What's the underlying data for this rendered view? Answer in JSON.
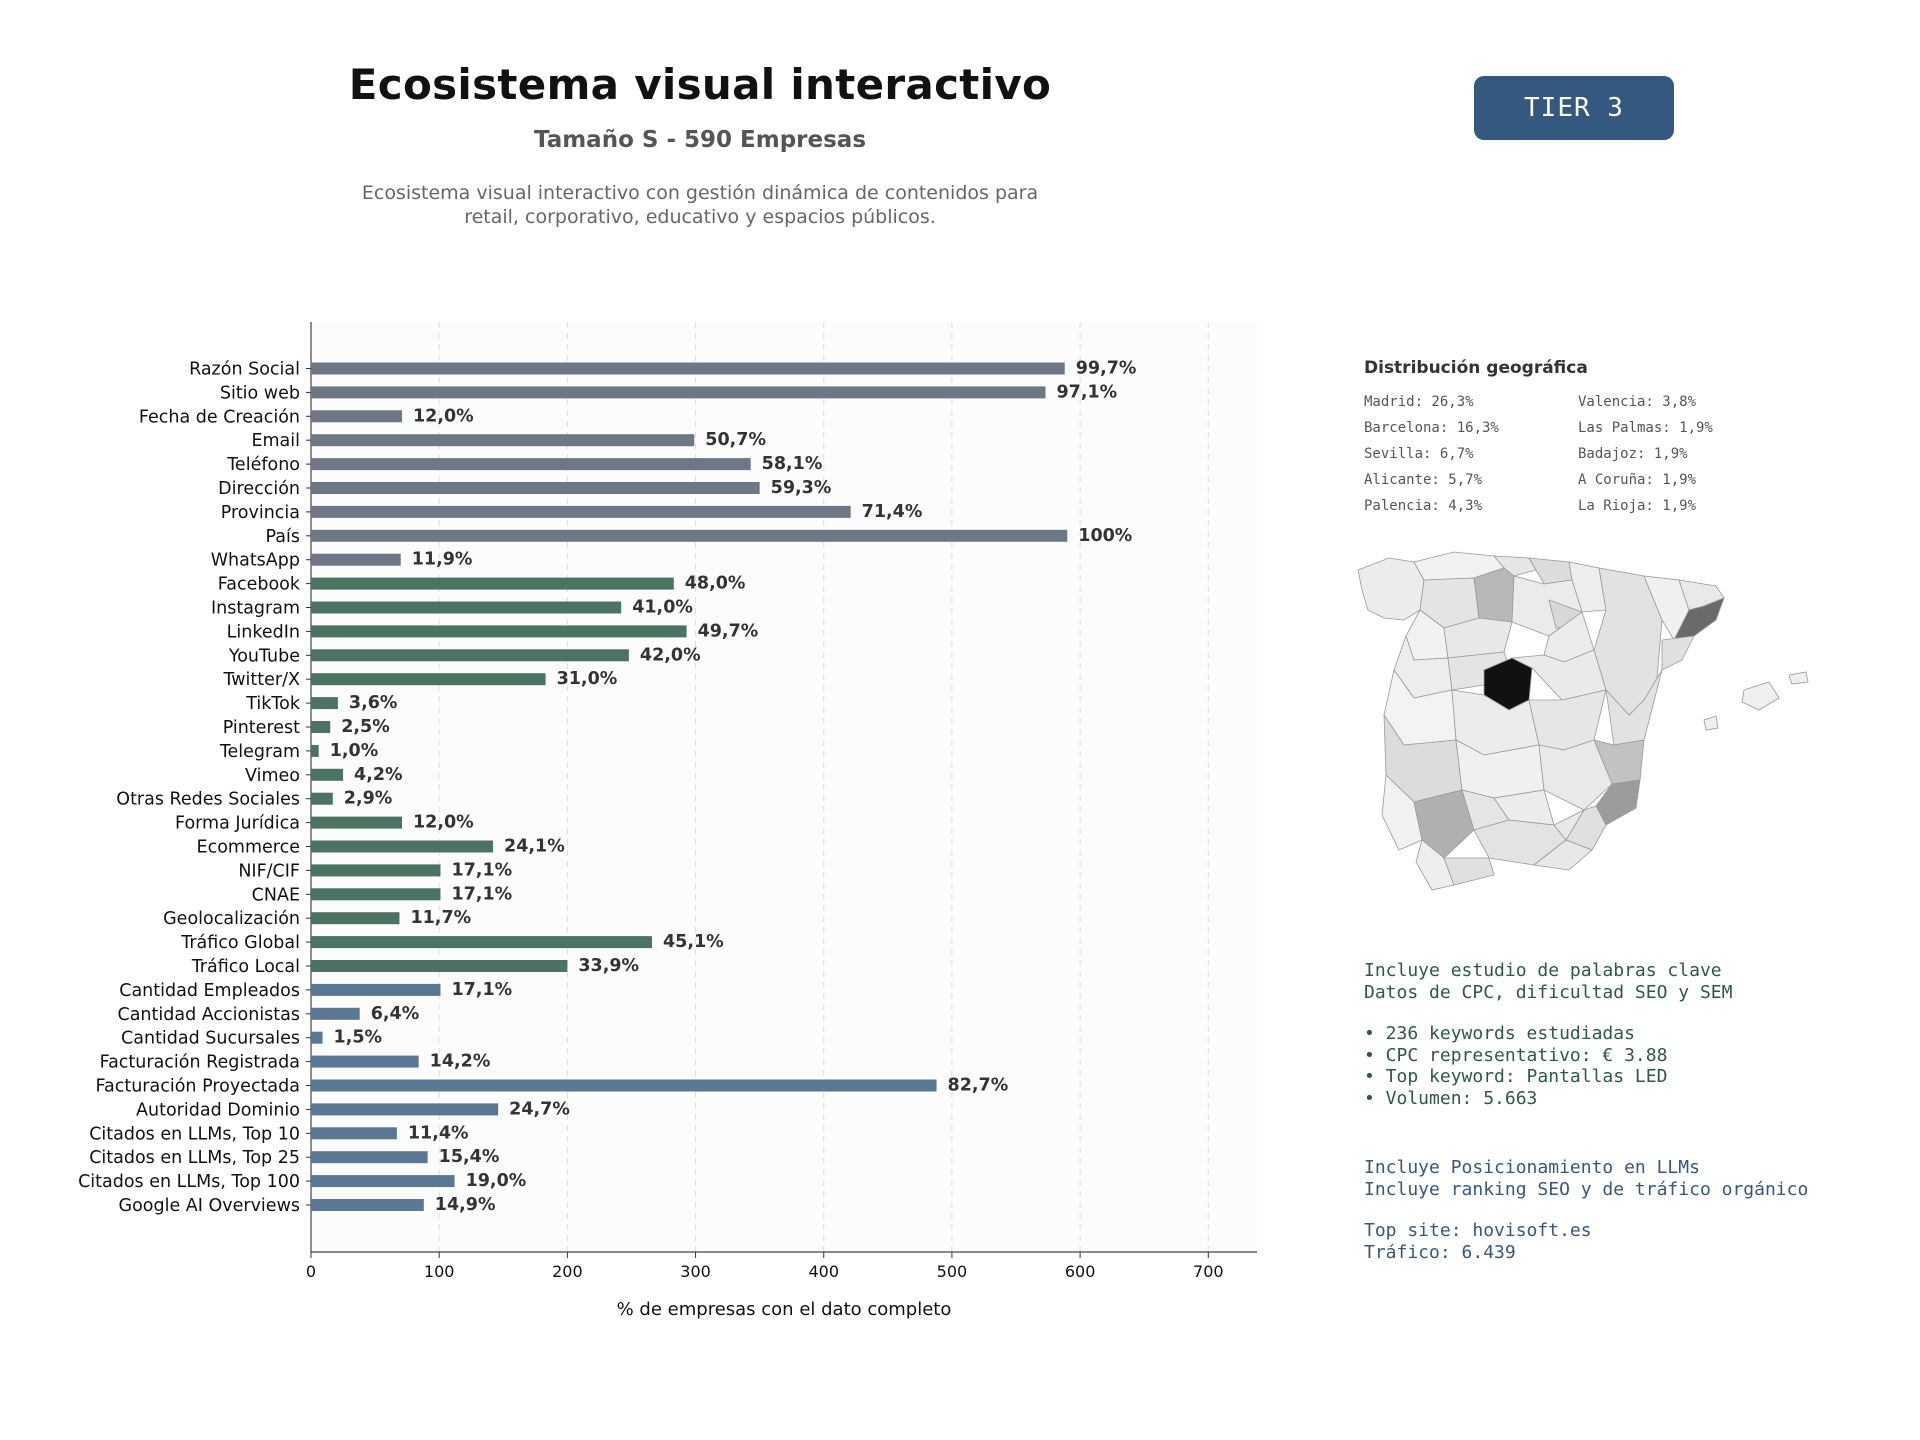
{
  "header": {
    "title": "Ecosistema visual interactivo",
    "subtitle": "Tamaño S - 590 Empresas",
    "description_line1": "Ecosistema visual interactivo con gestión dinámica de contenidos para",
    "description_line2": "retail, corporativo, educativo y espacios públicos."
  },
  "badge": {
    "label": "TIER 3",
    "color": "#34587e"
  },
  "chart_data": {
    "type": "bar",
    "orientation": "horizontal",
    "xlabel": "% de empresas con el dato completo",
    "xlim": [
      0,
      738
    ],
    "xticks": [
      0,
      100,
      200,
      300,
      400,
      500,
      600,
      700
    ],
    "grid": "vertical dashed",
    "total": 590,
    "group_colors": {
      "basic": "#6c7885",
      "social": "#4a7461",
      "business": "#5a7894"
    },
    "bars": [
      {
        "label": "Razón Social",
        "value": 588,
        "pct": "99,7%",
        "group": "basic"
      },
      {
        "label": "Sitio web",
        "value": 573,
        "pct": "97,1%",
        "group": "basic"
      },
      {
        "label": "Fecha de Creación",
        "value": 71,
        "pct": "12,0%",
        "group": "basic"
      },
      {
        "label": "Email",
        "value": 299,
        "pct": "50,7%",
        "group": "basic"
      },
      {
        "label": "Teléfono",
        "value": 343,
        "pct": "58,1%",
        "group": "basic"
      },
      {
        "label": "Dirección",
        "value": 350,
        "pct": "59,3%",
        "group": "basic"
      },
      {
        "label": "Provincia",
        "value": 421,
        "pct": "71,4%",
        "group": "basic"
      },
      {
        "label": "País",
        "value": 590,
        "pct": "100%",
        "group": "basic"
      },
      {
        "label": "WhatsApp",
        "value": 70,
        "pct": "11,9%",
        "group": "basic"
      },
      {
        "label": "Facebook",
        "value": 283,
        "pct": "48,0%",
        "group": "social"
      },
      {
        "label": "Instagram",
        "value": 242,
        "pct": "41,0%",
        "group": "social"
      },
      {
        "label": "LinkedIn",
        "value": 293,
        "pct": "49,7%",
        "group": "social"
      },
      {
        "label": "YouTube",
        "value": 248,
        "pct": "42,0%",
        "group": "social"
      },
      {
        "label": "Twitter/X",
        "value": 183,
        "pct": "31,0%",
        "group": "social"
      },
      {
        "label": "TikTok",
        "value": 21,
        "pct": "3,6%",
        "group": "social"
      },
      {
        "label": "Pinterest",
        "value": 15,
        "pct": "2,5%",
        "group": "social"
      },
      {
        "label": "Telegram",
        "value": 6,
        "pct": "1,0%",
        "group": "social"
      },
      {
        "label": "Vimeo",
        "value": 25,
        "pct": "4,2%",
        "group": "social"
      },
      {
        "label": "Otras Redes Sociales",
        "value": 17,
        "pct": "2,9%",
        "group": "social"
      },
      {
        "label": "Forma Jurídica",
        "value": 71,
        "pct": "12,0%",
        "group": "social"
      },
      {
        "label": "Ecommerce",
        "value": 142,
        "pct": "24,1%",
        "group": "social"
      },
      {
        "label": "NIF/CIF",
        "value": 101,
        "pct": "17,1%",
        "group": "social"
      },
      {
        "label": "CNAE",
        "value": 101,
        "pct": "17,1%",
        "group": "social"
      },
      {
        "label": "Geolocalización",
        "value": 69,
        "pct": "11,7%",
        "group": "social"
      },
      {
        "label": "Tráfico Global",
        "value": 266,
        "pct": "45,1%",
        "group": "social"
      },
      {
        "label": "Tráfico Local",
        "value": 200,
        "pct": "33,9%",
        "group": "social"
      },
      {
        "label": "Cantidad Empleados",
        "value": 101,
        "pct": "17,1%",
        "group": "business"
      },
      {
        "label": "Cantidad Accionistas",
        "value": 38,
        "pct": "6,4%",
        "group": "business"
      },
      {
        "label": "Cantidad Sucursales",
        "value": 9,
        "pct": "1,5%",
        "group": "business"
      },
      {
        "label": "Facturación Registrada",
        "value": 84,
        "pct": "14,2%",
        "group": "business"
      },
      {
        "label": "Facturación Proyectada",
        "value": 488,
        "pct": "82,7%",
        "group": "business"
      },
      {
        "label": "Autoridad Dominio",
        "value": 146,
        "pct": "24,7%",
        "group": "business"
      },
      {
        "label": "Citados en LLMs, Top 10",
        "value": 67,
        "pct": "11,4%",
        "group": "business"
      },
      {
        "label": "Citados en LLMs, Top 25",
        "value": 91,
        "pct": "15,4%",
        "group": "business"
      },
      {
        "label": "Citados en LLMs, Top 100",
        "value": 112,
        "pct": "19,0%",
        "group": "business"
      },
      {
        "label": "Google AI Overviews",
        "value": 88,
        "pct": "14,9%",
        "group": "business"
      }
    ]
  },
  "geo": {
    "title": "Distribución geográfica",
    "items": [
      "Madrid: 26,3%",
      "Valencia: 3,8%",
      "Barcelona: 16,3%",
      "Las Palmas: 1,9%",
      "Sevilla: 6,7%",
      "Badajoz: 1,9%",
      "Alicante: 5,7%",
      "A Coruña: 1,9%",
      "Palencia: 4,3%",
      "La Rioja: 1,9%"
    ]
  },
  "keywords": {
    "line1": "Incluye estudio de palabras clave",
    "line2": "Datos de CPC, dificultad SEO y SEM",
    "bullet1": "• 236 keywords estudiadas",
    "bullet2": "• CPC representativo: € 3.88",
    "bullet3": "• Top keyword: Pantallas LED",
    "bullet4": "• Volumen: 5.663",
    "color": "#2d5a43"
  },
  "llm": {
    "line1": "Incluye Posicionamiento en LLMs",
    "line2": "Incluye ranking SEO y de tráfico orgánico",
    "line3": "Top site: hovisoft.es",
    "line4": "Tráfico: 6.439",
    "color": "#34587e"
  }
}
